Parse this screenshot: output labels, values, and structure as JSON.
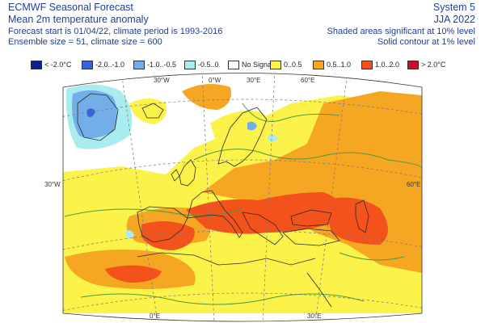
{
  "header": {
    "left_line1": "ECMWF Seasonal Forecast",
    "left_line2": "Mean 2m temperature anomaly",
    "left_line3": "Forecast start is 01/04/22, climate period is 1993-2016",
    "left_line4": "Ensemble size = 51, climate size = 600",
    "right_line1": "System 5",
    "right_line2": "JJA 2022",
    "right_line3": "Shaded areas significant at 10% level",
    "right_line4": "Solid contour at 1% level"
  },
  "legend": [
    {
      "label": "< -2.0°C",
      "color": "#0b1f8f"
    },
    {
      "label": "-2.0..-1.0",
      "color": "#3a62d8"
    },
    {
      "label": "-1.0..-0.5",
      "color": "#74aee8"
    },
    {
      "label": "-0.5..0",
      "color": "#a8ecef"
    },
    {
      "label": "No Signal",
      "color": "#ffffff"
    },
    {
      "label": "0..0.5",
      "color": "#fbf24a"
    },
    {
      "label": "0.5..1.0",
      "color": "#f5a623"
    },
    {
      "label": "1.0..2.0",
      "color": "#f4521c"
    },
    {
      "label": "> 2.0°C",
      "color": "#c8102e"
    }
  ],
  "map": {
    "lon_labels_top": [
      "30°W",
      "0°W",
      "30°E",
      "60°E"
    ],
    "lon_labels_bottom": [
      "0°E",
      "30°E"
    ],
    "lat_label_left": "30°W",
    "lat_label_right": "60°E",
    "colors": {
      "ocean_white": "#ffffff",
      "coast": "#2a2a2a",
      "grid": "#777777",
      "contour": "#4e9a3a"
    }
  }
}
